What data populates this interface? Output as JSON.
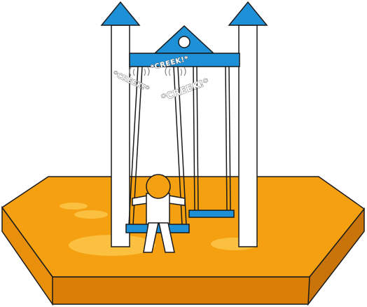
{
  "scene": {
    "title": "Playground swing set",
    "colors": {
      "sand_top": "#F4A010",
      "sand_side": "#E38A0A",
      "sand_front": "#D97E07",
      "sand_highlight": "#FBC040",
      "outline": "#1a1a1a",
      "frame_blue": "#1E90D8",
      "post_white": "#ffffff",
      "child_head": "#F4A010"
    }
  },
  "sound_effects": {
    "left": "*CREEK!*",
    "top": "*CREEK!*",
    "center": "*CREEK!*"
  }
}
